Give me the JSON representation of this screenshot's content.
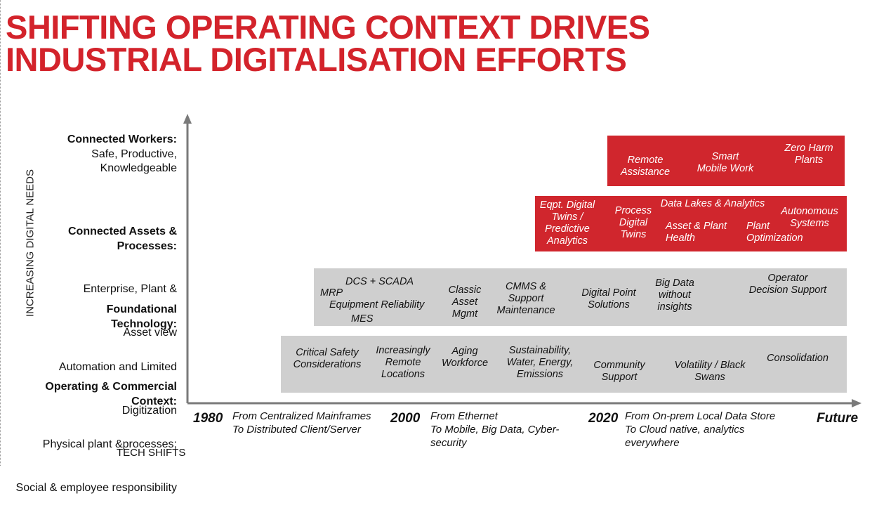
{
  "title": {
    "line1": "SHIFTING OPERATING CONTEXT DRIVES",
    "line2": "INDUSTRIAL DIGITALISATION EFFORTS"
  },
  "y_axis_label": "INCREASING DIGITAL NEEDS",
  "x_axis_label": "TECH SHIFTS",
  "colors": {
    "title": "#d3232b",
    "red_band": "#d0262d",
    "gray_band": "#cfcfcf"
  },
  "categories": [
    {
      "bold": "Connected Workers:",
      "desc": [
        "Safe, Productive,",
        "Knowledgeable"
      ]
    },
    {
      "bold": "Connected Assets &\nProcesses:",
      "desc": [
        "Enterprise, Plant &",
        "Asset view"
      ]
    },
    {
      "bold": "Foundational\nTechnology:",
      "desc": [
        "Automation and Limited",
        "Digitization"
      ]
    },
    {
      "bold": "Operating & Commercial\nContext:",
      "desc": [
        "Physical plant &processes;",
        "Social & employee responsibility"
      ]
    }
  ],
  "bands": {
    "connected_workers": [
      "Remote\nAssistance",
      "Smart\nMobile Work",
      "Zero Harm\nPlants"
    ],
    "connected_assets": [
      "Eqpt. Digital\nTwins /\nPredictive\nAnalytics",
      "Process\nDigital\nTwins",
      "Data Lakes & Analytics",
      "Asset & Plant\nHealth",
      "Plant\nOptimization",
      "Autonomous\nSystems"
    ],
    "foundational": [
      "DCS + SCADA",
      "MRP",
      "Equipment Reliability",
      "MES",
      "Classic\nAsset\nMgmt",
      "CMMS &\nSupport\nMaintenance",
      "Digital Point\nSolutions",
      "Big Data\nwithout\ninsights",
      "Operator\nDecision Support"
    ],
    "operating": [
      "Critical Safety\nConsiderations",
      "Increasingly\nRemote\nLocations",
      "Aging\nWorkforce",
      "Sustainability,\nWater, Energy,\nEmissions",
      "Community\nSupport",
      "Volatility / Black\nSwans",
      "Consolidation"
    ]
  },
  "timeline": {
    "years": [
      "1980",
      "2000",
      "2020",
      "Future"
    ],
    "shifts": [
      "From Centralized Mainframes\nTo Distributed Client/Server",
      "From Ethernet\nTo Mobile, Big Data, Cyber-\nsecurity",
      "From On-prem Local Data Store\nTo Cloud native, analytics\neverywhere"
    ]
  }
}
